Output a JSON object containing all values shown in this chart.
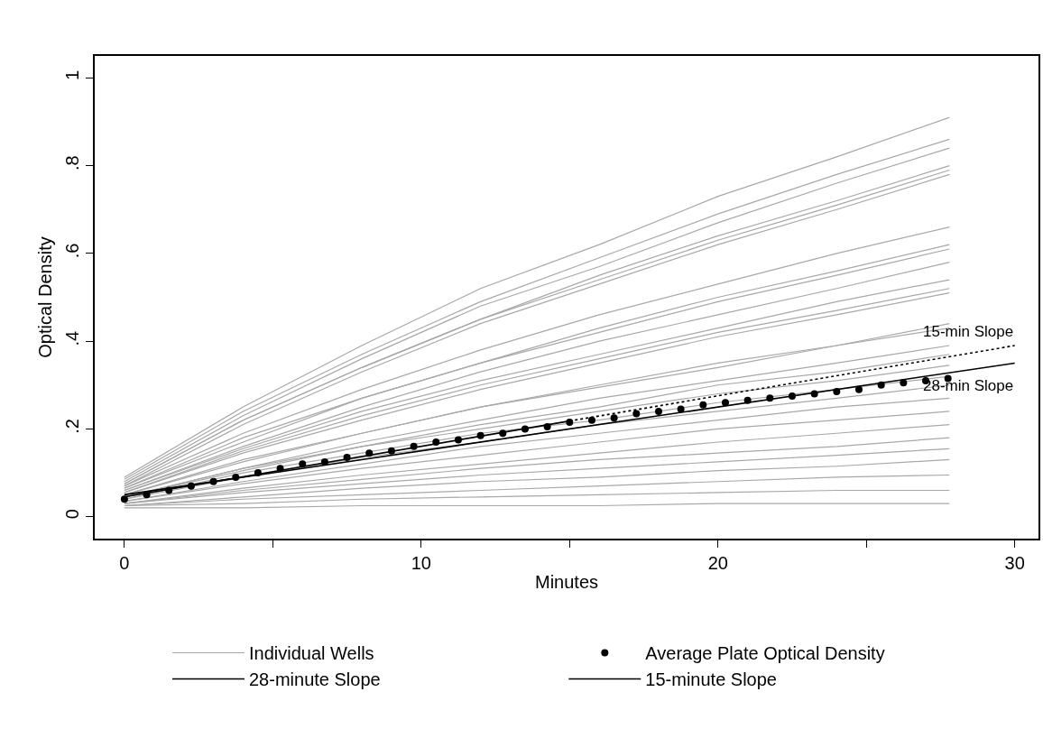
{
  "chart_data": {
    "type": "line",
    "xlabel": "Minutes",
    "ylabel": "Optical Density",
    "x": [
      0,
      4,
      8,
      12,
      16,
      20,
      24,
      27.8
    ],
    "xlim": [
      -1,
      30.8
    ],
    "xticks": [
      0,
      {
        "value": 5,
        "label": null
      },
      10,
      {
        "value": 15,
        "label": null
      },
      20,
      {
        "value": 25,
        "label": null
      },
      30
    ],
    "ylim": [
      -0.05,
      1.05
    ],
    "yticks": [
      0,
      {
        "value": 0.2,
        "label": ".2"
      },
      {
        "value": 0.4,
        "label": ".4"
      },
      {
        "value": 0.6,
        "label": ".6"
      },
      {
        "value": 0.8,
        "label": ".8"
      },
      1
    ],
    "legend": "bottom",
    "series": [
      {
        "name": "Individual Wells",
        "color": "#a8a8a8",
        "values": [
          0.09,
          0.25,
          0.39,
          0.52,
          0.62,
          0.73,
          0.82,
          0.91
        ]
      },
      {
        "color": "#a8a8a8",
        "values": [
          0.085,
          0.24,
          0.37,
          0.49,
          0.59,
          0.69,
          0.78,
          0.86
        ]
      },
      {
        "type": "line",
        "color": "#a8a8a8",
        "values": [
          0.08,
          0.23,
          0.36,
          0.48,
          0.57,
          0.67,
          0.76,
          0.84
        ]
      },
      {
        "type": "line",
        "color": "#a8a8a8",
        "values": [
          0.075,
          0.22,
          0.34,
          0.45,
          0.55,
          0.64,
          0.72,
          0.8
        ]
      },
      {
        "type": "line",
        "color": "#a8a8a8",
        "values": [
          0.075,
          0.22,
          0.34,
          0.45,
          0.54,
          0.63,
          0.71,
          0.79
        ]
      },
      {
        "type": "line",
        "color": "#a8a8a8",
        "values": [
          0.07,
          0.21,
          0.33,
          0.44,
          0.53,
          0.62,
          0.7,
          0.78
        ]
      },
      {
        "type": "line",
        "color": "#a8a8a8",
        "values": [
          0.07,
          0.19,
          0.29,
          0.38,
          0.46,
          0.53,
          0.6,
          0.66
        ]
      },
      {
        "type": "line",
        "color": "#a8a8a8",
        "values": [
          0.065,
          0.18,
          0.27,
          0.35,
          0.43,
          0.5,
          0.56,
          0.62
        ]
      },
      {
        "type": "line",
        "color": "#a8a8a8",
        "values": [
          0.065,
          0.17,
          0.27,
          0.35,
          0.42,
          0.49,
          0.55,
          0.61
        ]
      },
      {
        "type": "line",
        "color": "#a8a8a8",
        "values": [
          0.06,
          0.16,
          0.25,
          0.33,
          0.4,
          0.46,
          0.52,
          0.58
        ]
      },
      {
        "type": "line",
        "color": "#a8a8a8",
        "values": [
          0.06,
          0.155,
          0.24,
          0.31,
          0.37,
          0.43,
          0.49,
          0.54
        ]
      },
      {
        "type": "line",
        "color": "#a8a8a8",
        "values": [
          0.055,
          0.15,
          0.23,
          0.3,
          0.36,
          0.42,
          0.47,
          0.52
        ]
      },
      {
        "type": "line",
        "color": "#a8a8a8",
        "values": [
          0.055,
          0.145,
          0.22,
          0.29,
          0.35,
          0.41,
          0.46,
          0.51
        ]
      },
      {
        "type": "line",
        "color": "#a8a8a8",
        "values": [
          0.05,
          0.13,
          0.19,
          0.25,
          0.3,
          0.35,
          0.39,
          0.44
        ]
      },
      {
        "type": "line",
        "color": "#a8a8a8",
        "values": [
          0.05,
          0.125,
          0.19,
          0.25,
          0.295,
          0.34,
          0.39,
          0.43
        ]
      },
      {
        "type": "line",
        "color": "#a8a8a8",
        "values": [
          0.045,
          0.11,
          0.17,
          0.22,
          0.27,
          0.31,
          0.35,
          0.39
        ]
      },
      {
        "type": "line",
        "color": "#a8a8a8",
        "values": [
          0.045,
          0.11,
          0.16,
          0.21,
          0.25,
          0.3,
          0.33,
          0.37
        ]
      },
      {
        "type": "line",
        "color": "#a8a8a8",
        "values": [
          0.045,
          0.105,
          0.16,
          0.2,
          0.24,
          0.28,
          0.31,
          0.345
        ]
      },
      {
        "type": "line",
        "color": "#a8a8a8",
        "values": [
          0.04,
          0.1,
          0.145,
          0.19,
          0.22,
          0.26,
          0.29,
          0.32
        ]
      },
      {
        "type": "line",
        "color": "#a8a8a8",
        "values": [
          0.04,
          0.09,
          0.135,
          0.17,
          0.21,
          0.24,
          0.27,
          0.3
        ]
      },
      {
        "type": "line",
        "color": "#a8a8a8",
        "values": [
          0.035,
          0.08,
          0.12,
          0.16,
          0.19,
          0.22,
          0.25,
          0.27
        ]
      },
      {
        "type": "line",
        "color": "#a8a8a8",
        "values": [
          0.035,
          0.075,
          0.11,
          0.14,
          0.17,
          0.2,
          0.22,
          0.24
        ]
      },
      {
        "type": "line",
        "color": "#a8a8a8",
        "values": [
          0.03,
          0.065,
          0.095,
          0.12,
          0.145,
          0.17,
          0.19,
          0.21
        ]
      },
      {
        "type": "line",
        "color": "#a8a8a8",
        "values": [
          0.03,
          0.06,
          0.085,
          0.11,
          0.13,
          0.145,
          0.16,
          0.18
        ]
      },
      {
        "type": "line",
        "color": "#a8a8a8",
        "values": [
          0.03,
          0.055,
          0.075,
          0.095,
          0.11,
          0.125,
          0.14,
          0.155
        ]
      },
      {
        "type": "line",
        "color": "#a8a8a8",
        "values": [
          0.025,
          0.045,
          0.065,
          0.08,
          0.09,
          0.105,
          0.115,
          0.13
        ]
      },
      {
        "type": "line",
        "color": "#a8a8a8",
        "values": [
          0.025,
          0.04,
          0.05,
          0.06,
          0.07,
          0.08,
          0.09,
          0.095
        ]
      },
      {
        "type": "line",
        "color": "#a8a8a8",
        "values": [
          0.025,
          0.03,
          0.04,
          0.045,
          0.05,
          0.055,
          0.06,
          0.06
        ]
      },
      {
        "type": "line",
        "color": "#a8a8a8",
        "values": [
          0.02,
          0.02,
          0.025,
          0.025,
          0.025,
          0.03,
          0.03,
          0.03
        ]
      },
      {
        "name": "Average Plate Optical Density",
        "type": "scatter",
        "color": "#000000",
        "marker": "circle",
        "x": [
          0,
          0.75,
          1.5,
          2.25,
          3,
          3.75,
          4.5,
          5.25,
          6,
          6.75,
          7.5,
          8.25,
          9,
          9.75,
          10.5,
          11.25,
          12,
          12.75,
          13.5,
          14.25,
          15,
          15.75,
          16.5,
          17.25,
          18,
          18.75,
          19.5,
          20.25,
          21,
          21.75,
          22.5,
          23.25,
          24,
          24.75,
          25.5,
          26.25,
          27,
          27.75
        ],
        "values": [
          0.04,
          0.05,
          0.06,
          0.07,
          0.08,
          0.09,
          0.1,
          0.11,
          0.12,
          0.125,
          0.135,
          0.145,
          0.15,
          0.16,
          0.17,
          0.175,
          0.185,
          0.19,
          0.2,
          0.205,
          0.215,
          0.22,
          0.225,
          0.235,
          0.24,
          0.245,
          0.255,
          0.26,
          0.265,
          0.27,
          0.275,
          0.28,
          0.285,
          0.29,
          0.3,
          0.305,
          0.31,
          0.315
        ]
      },
      {
        "name": "28-minute Slope",
        "type": "line",
        "color": "#000000",
        "line_style": "solid",
        "x": [
          0,
          30
        ],
        "values": [
          0.05,
          0.35
        ]
      },
      {
        "name": "15-minute Slope",
        "type": "line",
        "color": "#000000",
        "line_style": "solid",
        "x": [
          0,
          15
        ],
        "values": [
          0.045,
          0.218
        ]
      },
      {
        "type": "line",
        "color": "#000000",
        "line_style": "dotted",
        "x": [
          15,
          30
        ],
        "values": [
          0.218,
          0.39
        ]
      }
    ],
    "annotations": [
      {
        "text": "15-min Slope",
        "x": 30,
        "y": 0.39
      },
      {
        "text": "28-min Slope",
        "x": 30,
        "y": 0.35
      }
    ]
  }
}
